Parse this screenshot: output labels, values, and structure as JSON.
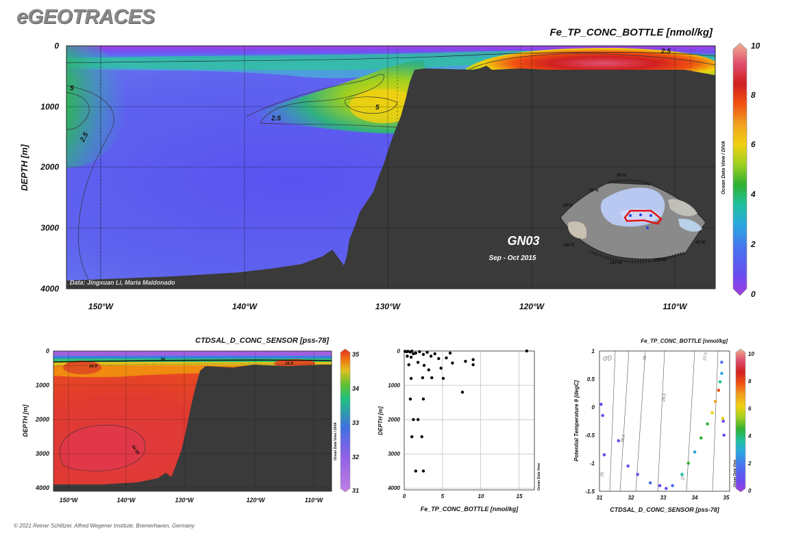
{
  "brand": "eGEOTRACES",
  "footer": "© 2021 Reiner Schlitzer, Alfred Wegener Institute, Bremerhaven, Germany",
  "colors": {
    "land": "#3a3a3a",
    "scale_fe": [
      "#a040e0",
      "#6a4cf0",
      "#4a70f0",
      "#2aa8e0",
      "#20c0a0",
      "#30b030",
      "#a0d020",
      "#f0d010",
      "#f0a020",
      "#f05010",
      "#d02020",
      "#e05070",
      "#f0a080"
    ],
    "scale_sal": [
      "#c080e0",
      "#8060e0",
      "#3070e0",
      "#20c080",
      "#60c030",
      "#e0c020",
      "#f07010",
      "#e03020"
    ]
  },
  "chart_data": [
    {
      "id": "main-section",
      "type": "heatmap",
      "title": "Fe_TP_CONC_BOTTLE [nmol/kg]",
      "ylabel": "DEPTH [m]",
      "x_ticks": [
        "150°W",
        "140°W",
        "130°W",
        "120°W",
        "110°W"
      ],
      "x_tick_values": [
        -150,
        -140,
        -130,
        -120,
        -110
      ],
      "xlim": [
        -152.5,
        -107
      ],
      "y_ticks": [
        "0",
        "1000",
        "2000",
        "3000",
        "4000"
      ],
      "y_tick_values": [
        0,
        1000,
        2000,
        3000,
        4000
      ],
      "ylim": [
        0,
        4000
      ],
      "contours": [
        {
          "label": "5",
          "value": 5
        },
        {
          "label": "2.5",
          "value": 2.5
        },
        {
          "label": "5",
          "value": 5
        },
        {
          "label": "2.5",
          "value": 2.5
        },
        {
          "label": "2.5",
          "value": 2.5
        }
      ],
      "colorbar": {
        "ticks": [
          "0",
          "2",
          "4",
          "6",
          "8",
          "10"
        ],
        "values": [
          0,
          2,
          4,
          6,
          8,
          10
        ]
      },
      "credit": "Data: Jingxuan Li, Maria Maldonado",
      "side_label": "Ocean Data View / DIVA",
      "cruise": {
        "name": "GN03",
        "dates": "Sep - Oct 2015"
      },
      "inset_map_labels": [
        "80°N",
        "70°N",
        "60°N",
        "150°W",
        "120°W",
        "60°W",
        "140°E"
      ]
    },
    {
      "id": "salinity-section",
      "type": "heatmap",
      "title": "CTDSAL_D_CONC_SENSOR [pss-78]",
      "ylabel": "DEPTH [m]",
      "x_ticks": [
        "150°W",
        "140°W",
        "130°W",
        "120°W",
        "110°W"
      ],
      "x_tick_values": [
        -150,
        -140,
        -130,
        -120,
        -110
      ],
      "xlim": [
        -152.5,
        -107
      ],
      "y_ticks": [
        "0",
        "1000",
        "2000",
        "3000",
        "4000"
      ],
      "y_tick_values": [
        0,
        1000,
        2000,
        3000,
        4000
      ],
      "ylim": [
        0,
        4100
      ],
      "contours": [
        {
          "label": "34.9",
          "value": 34.9
        },
        {
          "label": "34",
          "value": 34
        },
        {
          "label": "34.9",
          "value": 34.9
        },
        {
          "label": "34.95",
          "value": 34.95
        }
      ],
      "colorbar": {
        "ticks": [
          "31",
          "32",
          "33",
          "34",
          "35"
        ],
        "values": [
          31,
          32,
          33,
          34,
          35
        ]
      },
      "side_label": "Ocean Data View / DIVA"
    },
    {
      "id": "fe-depth-scatter",
      "type": "scatter",
      "xlabel": "Fe_TP_CONC_BOTTLE [nmol/kg]",
      "ylabel": "DEPTH [m]",
      "x_ticks": [
        "0",
        "5",
        "10",
        "15"
      ],
      "x_tick_values": [
        0,
        5,
        10,
        15
      ],
      "xlim": [
        0,
        17
      ],
      "y_ticks": [
        "0",
        "1000",
        "2000",
        "3000",
        "4000"
      ],
      "y_tick_values": [
        0,
        1000,
        2000,
        3000,
        4000
      ],
      "ylim": [
        0,
        4050
      ],
      "side_label": "Ocean Data View",
      "points": [
        {
          "x": 0.1,
          "y": 10
        },
        {
          "x": 0.3,
          "y": 20
        },
        {
          "x": 0.5,
          "y": 10
        },
        {
          "x": 0.8,
          "y": 30
        },
        {
          "x": 1.0,
          "y": 5
        },
        {
          "x": 1.2,
          "y": 80
        },
        {
          "x": 1.5,
          "y": 60
        },
        {
          "x": 0.4,
          "y": 150
        },
        {
          "x": 0.9,
          "y": 180
        },
        {
          "x": 2.0,
          "y": 20
        },
        {
          "x": 2.5,
          "y": 100
        },
        {
          "x": 3.0,
          "y": 40
        },
        {
          "x": 3.5,
          "y": 150
        },
        {
          "x": 4.0,
          "y": 80
        },
        {
          "x": 4.5,
          "y": 220
        },
        {
          "x": 5.5,
          "y": 200
        },
        {
          "x": 6.0,
          "y": 60
        },
        {
          "x": 8.0,
          "y": 300
        },
        {
          "x": 9.0,
          "y": 250
        },
        {
          "x": 9.0,
          "y": 400
        },
        {
          "x": 16.0,
          "y": 0
        },
        {
          "x": 0.6,
          "y": 400
        },
        {
          "x": 1.8,
          "y": 330
        },
        {
          "x": 2.6,
          "y": 420
        },
        {
          "x": 3.2,
          "y": 550
        },
        {
          "x": 4.8,
          "y": 500
        },
        {
          "x": 6.3,
          "y": 350
        },
        {
          "x": 0.9,
          "y": 800
        },
        {
          "x": 2.4,
          "y": 780
        },
        {
          "x": 3.6,
          "y": 780
        },
        {
          "x": 5.1,
          "y": 800
        },
        {
          "x": 7.6,
          "y": 1200
        },
        {
          "x": 0.8,
          "y": 1400
        },
        {
          "x": 2.5,
          "y": 1400
        },
        {
          "x": 1.2,
          "y": 2000
        },
        {
          "x": 1.8,
          "y": 2000
        },
        {
          "x": 1.0,
          "y": 2500
        },
        {
          "x": 2.3,
          "y": 2500
        },
        {
          "x": 1.5,
          "y": 3500
        },
        {
          "x": 2.5,
          "y": 3500
        }
      ]
    },
    {
      "id": "ts-diagram",
      "type": "scatter",
      "title": "Fe_TP_CONC_BOTTLE [nmol/kg]",
      "xlabel": "CTDSAL_D_CONC_SENSOR [pss-78]",
      "ylabel": "Potential Temperature θ [degC]",
      "x_ticks": [
        "31",
        "32",
        "33",
        "34",
        "35"
      ],
      "x_tick_values": [
        31,
        32,
        33,
        34,
        35
      ],
      "xlim": [
        31,
        35.1
      ],
      "y_ticks": [
        "1",
        "0.5",
        "0",
        "-0.5",
        "-1",
        "-1.5"
      ],
      "y_tick_values": [
        1,
        0.5,
        0,
        -0.5,
        -1,
        -1.5
      ],
      "ylim": [
        -1.5,
        1
      ],
      "isopycnal_symbol": "σ0",
      "isopycnal_labels": [
        "25",
        "25.5",
        "26",
        "26.5",
        "27",
        "27.5"
      ],
      "colorbar": {
        "ticks": [
          "0",
          "2",
          "4",
          "6",
          "8",
          "10"
        ],
        "values": [
          0,
          2,
          4,
          6,
          8,
          10
        ]
      },
      "side_label": "Ocean Data View",
      "points": [
        {
          "x": 31.05,
          "y": 0.05,
          "fe": 1.0
        },
        {
          "x": 31.1,
          "y": -0.15,
          "fe": 0.8
        },
        {
          "x": 31.15,
          "y": -0.85,
          "fe": 1.2
        },
        {
          "x": 31.6,
          "y": -0.6,
          "fe": 0.6
        },
        {
          "x": 31.9,
          "y": -1.05,
          "fe": 0.8
        },
        {
          "x": 32.2,
          "y": -1.2,
          "fe": 1.0
        },
        {
          "x": 32.6,
          "y": -1.35,
          "fe": 1.5
        },
        {
          "x": 32.9,
          "y": -1.4,
          "fe": 1.2
        },
        {
          "x": 33.1,
          "y": -1.45,
          "fe": 1.0
        },
        {
          "x": 33.3,
          "y": -1.4,
          "fe": 2.0
        },
        {
          "x": 33.6,
          "y": -1.2,
          "fe": 3.5
        },
        {
          "x": 33.8,
          "y": -1.0,
          "fe": 4.5
        },
        {
          "x": 34.0,
          "y": -0.8,
          "fe": 2.5
        },
        {
          "x": 34.2,
          "y": -0.55,
          "fe": 3.8
        },
        {
          "x": 34.4,
          "y": -0.3,
          "fe": 4.2
        },
        {
          "x": 34.55,
          "y": -0.1,
          "fe": 5.5
        },
        {
          "x": 34.65,
          "y": 0.1,
          "fe": 6.5
        },
        {
          "x": 34.75,
          "y": 0.3,
          "fe": 7.2
        },
        {
          "x": 34.8,
          "y": 0.45,
          "fe": 3.0
        },
        {
          "x": 34.85,
          "y": 0.6,
          "fe": 2.2
        },
        {
          "x": 34.85,
          "y": 0.8,
          "fe": 1.8
        },
        {
          "x": 34.9,
          "y": -0.25,
          "fe": 1.0
        },
        {
          "x": 34.92,
          "y": -0.5,
          "fe": 0.8
        },
        {
          "x": 34.88,
          "y": -0.2,
          "fe": 5.8
        }
      ]
    }
  ]
}
